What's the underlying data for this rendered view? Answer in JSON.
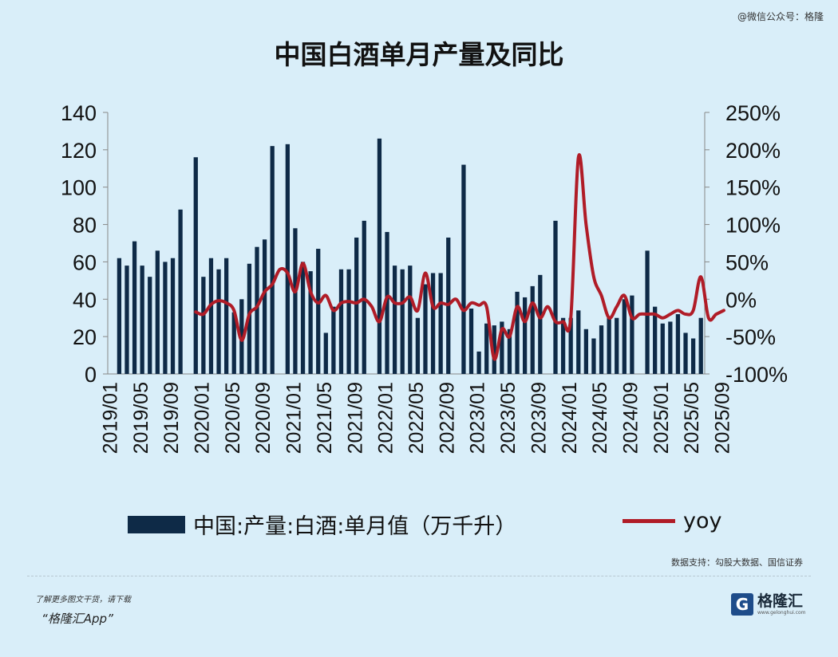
{
  "header": {
    "watermark": "@微信公众号：格隆"
  },
  "source_note": "数据支持：勾股大数据、国信证券",
  "footer": {
    "line1": "了解更多图文干货，请下载",
    "line2": "“格隆汇App”"
  },
  "brand": {
    "icon_letter": "G",
    "name": "格隆汇",
    "url": "www.gelonghui.com"
  },
  "colors": {
    "bar": "#0e2a47",
    "line": "#b01c27",
    "background": "#d9eef9"
  },
  "chart_data": {
    "type": "bar",
    "title": "中国白酒单月产量及同比",
    "x_tick_labels": [
      "2019/01",
      "2019/05",
      "2019/09",
      "2020/01",
      "2020/05",
      "2020/09",
      "2021/01",
      "2021/05",
      "2021/09",
      "2022/01",
      "2022/05",
      "2022/09",
      "2023/01",
      "2023/05",
      "2023/09",
      "2024/01",
      "2024/05",
      "2024/09",
      "2025/01",
      "2025/05",
      "2025/09"
    ],
    "y_left": {
      "ticks": [
        0,
        20,
        40,
        60,
        80,
        100,
        120,
        140
      ],
      "range": [
        0,
        140
      ]
    },
    "y_right": {
      "ticks": [
        "-100%",
        "-50%",
        "0%",
        "50%",
        "100%",
        "150%",
        "200%",
        "250%"
      ],
      "tick_values": [
        -100,
        -50,
        0,
        50,
        100,
        150,
        200,
        250
      ],
      "range": [
        -100,
        250
      ]
    },
    "grid": false,
    "legend": "bottom",
    "series": [
      {
        "name": "中国:产量:白酒:单月值（万千升）",
        "type": "bar",
        "axis": "left",
        "values": [
          null,
          62,
          58,
          71,
          58,
          52,
          66,
          60,
          62,
          88,
          null,
          116,
          52,
          62,
          56,
          62,
          33,
          40,
          59,
          68,
          72,
          122,
          null,
          123,
          78,
          60,
          55,
          67,
          22,
          36,
          56,
          56,
          73,
          82,
          null,
          126,
          76,
          58,
          56,
          58,
          30,
          48,
          54,
          54,
          73,
          null,
          112,
          35,
          12,
          27,
          26,
          28,
          24,
          44,
          41,
          47,
          53,
          null,
          82,
          30,
          30,
          34,
          24,
          19,
          26,
          30,
          30,
          40,
          42,
          null,
          66,
          36,
          27,
          28,
          32,
          22,
          19,
          30
        ]
      },
      {
        "name": "yoy",
        "type": "line",
        "axis": "right",
        "values": [
          null,
          null,
          null,
          null,
          null,
          null,
          null,
          null,
          null,
          null,
          null,
          -17,
          -20,
          -7,
          -2,
          -5,
          -15,
          -55,
          -20,
          -10,
          10,
          20,
          40,
          35,
          10,
          48,
          10,
          -5,
          5,
          -15,
          -5,
          -3,
          -5,
          0,
          -10,
          -30,
          3,
          -5,
          -5,
          3,
          -15,
          35,
          -10,
          -5,
          -7,
          0,
          -15,
          -5,
          -8,
          -10,
          -80,
          -40,
          -50,
          -10,
          -30,
          -5,
          -25,
          -10,
          -30,
          -30,
          -25,
          190,
          100,
          30,
          5,
          -25,
          -10,
          5,
          -25,
          -20,
          -20,
          -20,
          -25,
          -20,
          -15,
          -20,
          -15,
          30,
          -25,
          -20,
          -15
        ]
      }
    ]
  }
}
